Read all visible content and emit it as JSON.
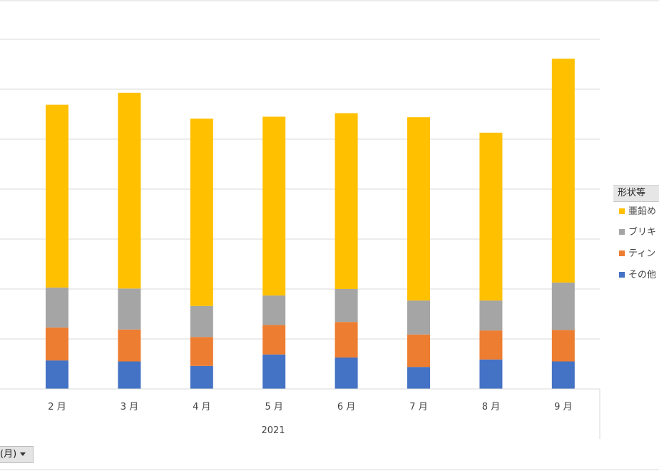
{
  "chart_data": {
    "type": "bar",
    "stacked": true,
    "categories": [
      "2 月",
      "3 月",
      "4 月",
      "5 月",
      "6 月",
      "7 月",
      "8 月",
      "9 月"
    ],
    "group_label": "2021",
    "ylim": [
      0,
      7
    ],
    "grid": true,
    "legend_position": "right",
    "series": [
      {
        "name": "その他",
        "values": [
          0.57,
          0.55,
          0.46,
          0.69,
          0.63,
          0.44,
          0.59,
          0.55
        ],
        "color": "#4472c4"
      },
      {
        "name": "ティン",
        "values": [
          0.66,
          0.64,
          0.58,
          0.59,
          0.71,
          0.65,
          0.58,
          0.63
        ],
        "color": "#ed7d31"
      },
      {
        "name": "ブリキ",
        "values": [
          0.8,
          0.82,
          0.62,
          0.59,
          0.66,
          0.68,
          0.6,
          0.95
        ],
        "color": "#a5a5a5"
      },
      {
        "name": "亜鉛め",
        "values": [
          3.66,
          3.92,
          3.75,
          3.58,
          3.52,
          3.67,
          3.36,
          4.48
        ],
        "color": "#ffc000"
      }
    ]
  },
  "legend": {
    "title": "形状等",
    "items": [
      {
        "label": "亜鉛め",
        "color": "#ffc000"
      },
      {
        "label": "ブリキ",
        "color": "#a5a5a5"
      },
      {
        "label": "ティン",
        "color": "#ed7d31"
      },
      {
        "label": "その他",
        "color": "#4472c4"
      }
    ]
  },
  "filter_button": {
    "label": "(月)"
  }
}
